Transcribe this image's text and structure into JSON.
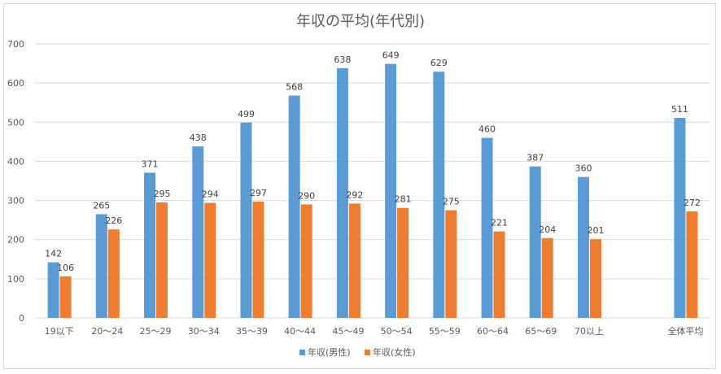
{
  "chart_data": {
    "type": "bar",
    "title": "年収の平均(年代別)",
    "xlabel": "",
    "ylabel": "",
    "ylim": [
      0,
      700
    ],
    "yticks": [
      0,
      100,
      200,
      300,
      400,
      500,
      600,
      700
    ],
    "grid": true,
    "legend_position": "bottom",
    "categories": [
      "19以下",
      "20～24",
      "25～29",
      "30～34",
      "35～39",
      "40～44",
      "45～49",
      "50～54",
      "55～59",
      "60～64",
      "65～69",
      "70以上",
      "",
      "全体平均"
    ],
    "series": [
      {
        "name": "年収(男性)",
        "color": "#5b9bd5",
        "values": [
          142,
          265,
          371,
          438,
          499,
          568,
          638,
          649,
          629,
          460,
          387,
          360,
          null,
          511
        ]
      },
      {
        "name": "年収(女性)",
        "color": "#ed7d31",
        "values": [
          106,
          226,
          295,
          294,
          297,
          290,
          292,
          281,
          275,
          221,
          204,
          201,
          null,
          272
        ]
      }
    ]
  }
}
